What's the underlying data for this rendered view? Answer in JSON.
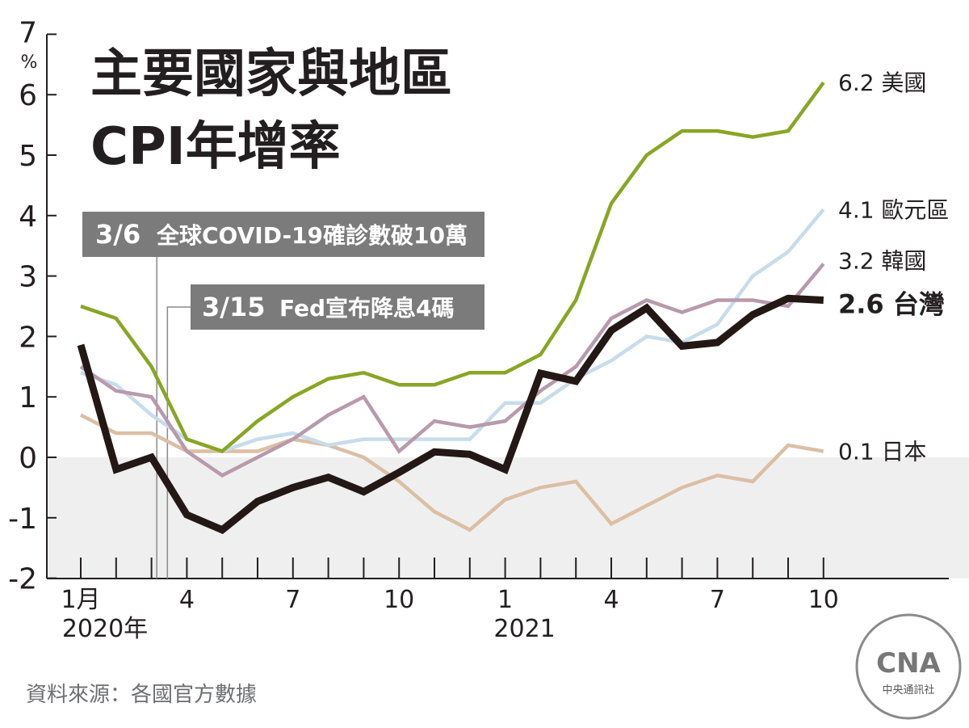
{
  "chart_data": {
    "type": "line",
    "title": "主要國家與地區",
    "subtitle": "CPI年增率",
    "ylabel": "%",
    "ylim": [
      -2,
      7
    ],
    "yticks": [
      -2,
      -1,
      0,
      1,
      2,
      3,
      4,
      5,
      6,
      7
    ],
    "y_top_label": "7",
    "y_unit_label": "%",
    "x_tick_labels": [
      {
        "index": 0,
        "label": "1月",
        "sub": "2020年"
      },
      {
        "index": 3,
        "label": "4"
      },
      {
        "index": 6,
        "label": "7"
      },
      {
        "index": 9,
        "label": "10"
      },
      {
        "index": 12,
        "label": "1",
        "sub": "2021"
      },
      {
        "index": 15,
        "label": "4"
      },
      {
        "index": 18,
        "label": "7"
      },
      {
        "index": 21,
        "label": "10"
      }
    ],
    "x_count": 22,
    "series": [
      {
        "name": "日本",
        "end_label": "0.1 日本",
        "color": "#dbbfa4",
        "values": [
          0.7,
          0.4,
          0.4,
          0.1,
          0.1,
          0.1,
          0.3,
          0.2,
          0.0,
          -0.4,
          -0.9,
          -1.2,
          -0.7,
          -0.5,
          -0.4,
          -1.1,
          -0.8,
          -0.5,
          -0.3,
          -0.4,
          0.2,
          0.1
        ]
      },
      {
        "name": "歐元區",
        "end_label": "4.1 歐元區",
        "color": "#c7dcec",
        "values": [
          1.4,
          1.2,
          0.7,
          0.3,
          0.1,
          0.3,
          0.4,
          0.2,
          0.3,
          0.3,
          0.3,
          0.3,
          0.9,
          0.9,
          1.3,
          1.6,
          2.0,
          1.9,
          2.2,
          3.0,
          3.4,
          4.1
        ]
      },
      {
        "name": "韓國",
        "end_label": "3.2 韓國",
        "color": "#b89aac",
        "values": [
          1.5,
          1.1,
          1.0,
          0.1,
          -0.3,
          0.0,
          0.3,
          0.7,
          1.0,
          0.1,
          0.6,
          0.5,
          0.6,
          1.1,
          1.5,
          2.3,
          2.6,
          2.4,
          2.6,
          2.6,
          2.5,
          3.2
        ]
      },
      {
        "name": "美國",
        "end_label": "6.2 美國",
        "color": "#88a624",
        "values": [
          2.5,
          2.3,
          1.5,
          0.3,
          0.1,
          0.6,
          1.0,
          1.3,
          1.4,
          1.2,
          1.2,
          1.4,
          1.4,
          1.7,
          2.6,
          4.2,
          5.0,
          5.4,
          5.4,
          5.3,
          5.4,
          6.2
        ]
      },
      {
        "name": "台灣",
        "end_label": "2.6 台灣",
        "color": "#231815",
        "bold": true,
        "values": [
          1.86,
          -0.2,
          0.0,
          -0.95,
          -1.2,
          -0.73,
          -0.5,
          -0.33,
          -0.57,
          -0.25,
          0.09,
          0.05,
          -0.2,
          1.39,
          1.26,
          2.1,
          2.47,
          1.84,
          1.9,
          2.36,
          2.63,
          2.6
        ]
      }
    ],
    "annotations": [
      {
        "label": "3/6",
        "text": "全球COVID-19確診數破10萬",
        "at_index": 2.15
      },
      {
        "label": "3/15",
        "text": "Fed宣布降息4碼",
        "at_index": 2.45
      }
    ],
    "negative_region_shaded": true
  },
  "source": "資料來源：各國官方數據",
  "logo": {
    "mark": "CNA",
    "text": "中央通訊社"
  }
}
